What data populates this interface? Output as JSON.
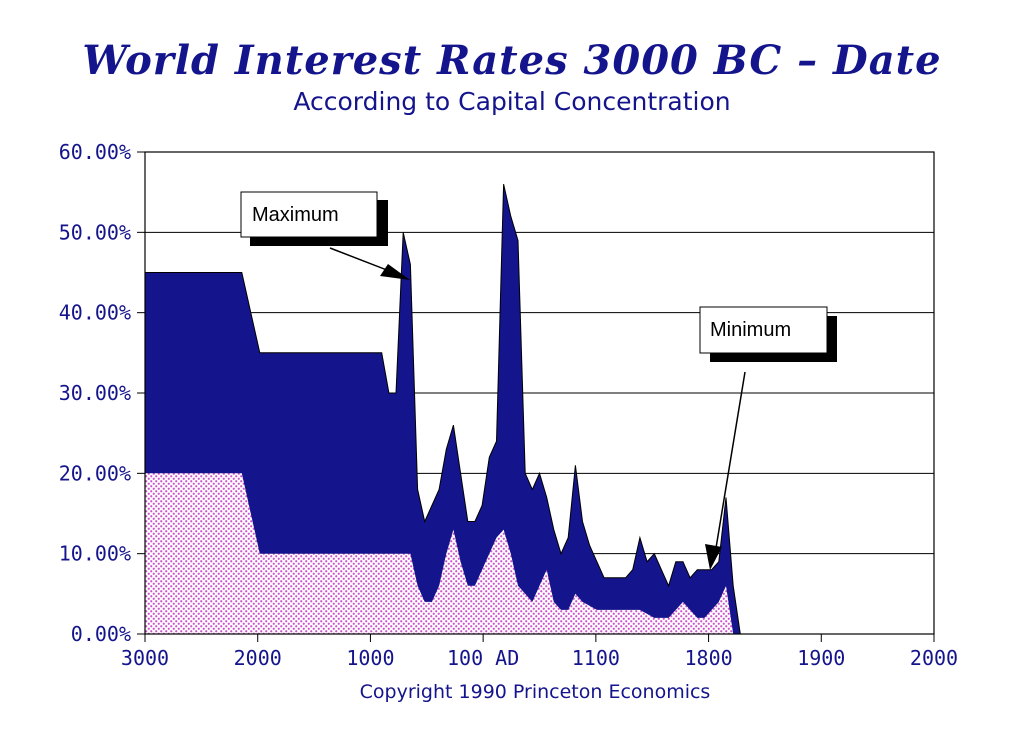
{
  "chart_data": {
    "type": "area",
    "title": "World Interest Rates 3000 BC – Date",
    "subtitle": "According to Capital Concentration",
    "xlabel": "",
    "ylabel": "",
    "footer": "Copyright 1990 Princeton Economics",
    "y_ticks": [
      "0.00%",
      "10.00%",
      "20.00%",
      "30.00%",
      "40.00%",
      "50.00%",
      "60.00%"
    ],
    "x_ticks": [
      "3000",
      "2000",
      "1000",
      "100 AD",
      "1100",
      "1800",
      "1900",
      "2000"
    ],
    "ylim": [
      0,
      60
    ],
    "grid": true,
    "colors": {
      "maximum": "#14148c",
      "minimum": "#cc66cc",
      "text": "#14148c"
    },
    "series": [
      {
        "name": "Maximum",
        "x": [
          0,
          10,
          13.5,
          16,
          33,
          34,
          35,
          36,
          37,
          38,
          39,
          40,
          41,
          42,
          43,
          44,
          45,
          46,
          47,
          48,
          49,
          50,
          51,
          52,
          53,
          54,
          55,
          56,
          57,
          58,
          59,
          60,
          61,
          62,
          63,
          64,
          65,
          66,
          67,
          68,
          69,
          70,
          71,
          72,
          73,
          74,
          75,
          76,
          77,
          78,
          79,
          80,
          81,
          82,
          83,
          84,
          85,
          86,
          87,
          88,
          89,
          90,
          91,
          92,
          93,
          94,
          95,
          96,
          97,
          98,
          99,
          100,
          101,
          102,
          103,
          104,
          105,
          106,
          107,
          108,
          109,
          110
        ],
        "values": [
          45,
          45,
          45,
          35,
          35,
          30,
          30,
          50,
          46,
          18,
          14,
          16,
          18,
          23,
          26,
          20,
          14,
          14,
          16,
          22,
          24,
          56,
          52,
          49,
          20,
          18,
          20,
          17,
          13,
          10,
          12,
          21,
          14,
          11,
          9,
          7,
          7,
          7,
          7,
          8,
          12,
          9,
          10,
          8,
          6,
          9,
          9,
          7,
          8,
          8,
          8,
          9,
          17,
          6,
          0,
          0,
          0,
          0,
          0,
          0,
          0,
          0,
          0,
          0,
          0,
          0,
          0,
          0,
          0,
          0,
          0,
          0,
          0,
          0,
          0,
          0,
          0,
          0,
          0,
          0,
          0,
          0
        ]
      },
      {
        "name": "Minimum",
        "x": [
          0,
          10,
          13.5,
          16,
          33,
          34,
          35,
          36,
          37,
          38,
          39,
          40,
          41,
          42,
          43,
          44,
          45,
          46,
          47,
          48,
          49,
          50,
          51,
          52,
          53,
          54,
          55,
          56,
          57,
          58,
          59,
          60,
          61,
          62,
          63,
          64,
          65,
          66,
          67,
          68,
          69,
          70,
          71,
          72,
          73,
          74,
          75,
          76,
          77,
          78,
          79,
          80,
          81,
          82,
          83,
          84,
          85,
          86,
          87,
          88,
          89,
          90,
          91,
          92,
          93,
          94,
          95,
          96,
          97,
          98,
          99,
          100,
          101,
          102,
          103,
          104,
          105,
          106,
          107,
          108,
          109,
          110
        ],
        "values": [
          20,
          20,
          20,
          10,
          10,
          10,
          10,
          10,
          10,
          6,
          4,
          4,
          6,
          10,
          13,
          9,
          6,
          6,
          8,
          10,
          12,
          13,
          10,
          6,
          5,
          4,
          6,
          8,
          4,
          3,
          3,
          5,
          4,
          3.5,
          3,
          3,
          3,
          3,
          3,
          3,
          3,
          2.5,
          2,
          2,
          2,
          3,
          4,
          3,
          2,
          2,
          3,
          4,
          6,
          0,
          0,
          0,
          0,
          0,
          0,
          0,
          0,
          0,
          0,
          0,
          0,
          0,
          0,
          0,
          0,
          0,
          0,
          0,
          0,
          0,
          0,
          0,
          0,
          0,
          0,
          0,
          0,
          0
        ]
      }
    ],
    "annotations": [
      {
        "text": "Maximum",
        "points_to": "Maximum"
      },
      {
        "text": "Minimum",
        "points_to": "Minimum"
      }
    ]
  }
}
